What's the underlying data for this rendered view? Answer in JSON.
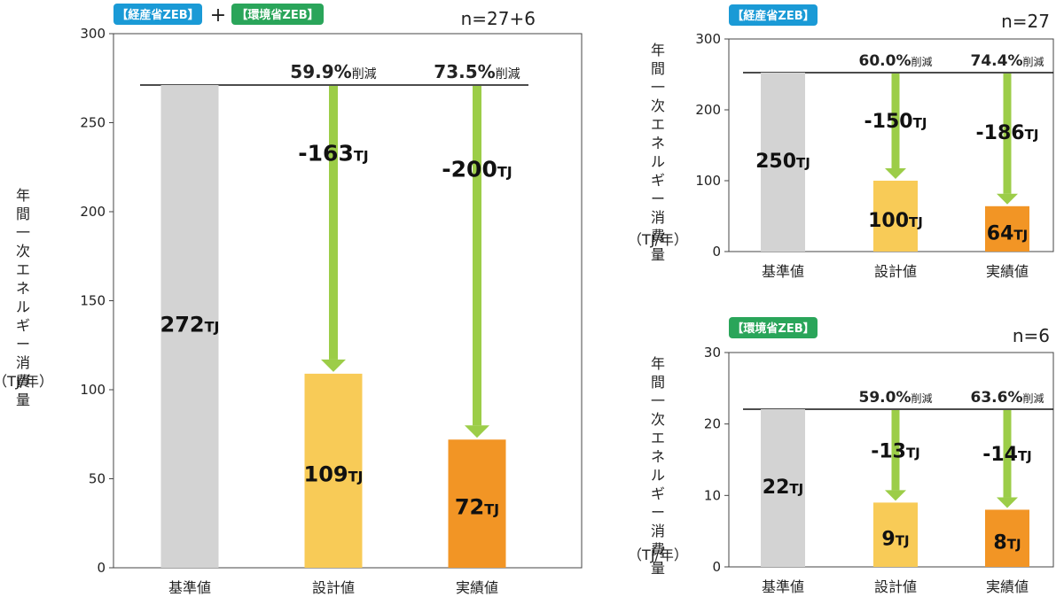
{
  "colors": {
    "baseline": "#d3d3d3",
    "design": "#f8cb57",
    "actual": "#f29525",
    "arrow": "#9ccd48",
    "badge_meti": "#1a9ad6",
    "badge_env": "#2aa55a",
    "frame": "#222222"
  },
  "badges": {
    "meti": "【経産省ZEB】",
    "env": "【環境省ZEB】",
    "plus": "+"
  },
  "y_axis_label": "年間一次エネルギー消費量",
  "y_axis_unit": "（TJ/年）",
  "reduce_suffix": "削減",
  "unit": "TJ",
  "chart_data": [
    {
      "type": "bar",
      "badges": [
        "meti",
        "env"
      ],
      "n_label": "n=27+6",
      "categories": [
        "基準値",
        "設計値",
        "実績値"
      ],
      "values": [
        272,
        109,
        72
      ],
      "value_labels": [
        "272",
        "109",
        "72"
      ],
      "reductions": [
        null,
        "-163",
        "-200"
      ],
      "reduction_pcts": [
        null,
        "59.9%",
        "73.5%"
      ],
      "ylim": [
        0,
        300
      ],
      "yticks": [
        0,
        50,
        100,
        150,
        200,
        250,
        300
      ]
    },
    {
      "type": "bar",
      "badges": [
        "meti"
      ],
      "n_label": "n=27",
      "categories": [
        "基準値",
        "設計値",
        "実績値"
      ],
      "values": [
        250,
        100,
        64
      ],
      "value_labels": [
        "250",
        "100",
        "64"
      ],
      "reductions": [
        null,
        "-150",
        "-186"
      ],
      "reduction_pcts": [
        null,
        "60.0%",
        "74.4%"
      ],
      "ylim": [
        0,
        300
      ],
      "yticks": [
        0,
        100,
        200,
        300
      ]
    },
    {
      "type": "bar",
      "badges": [
        "env"
      ],
      "n_label": "n=6",
      "categories": [
        "基準値",
        "設計値",
        "実績値"
      ],
      "values": [
        22,
        9,
        8
      ],
      "value_labels": [
        "22",
        "9",
        "8"
      ],
      "reductions": [
        null,
        "-13",
        "-14"
      ],
      "reduction_pcts": [
        null,
        "59.0%",
        "63.6%"
      ],
      "ylim": [
        0,
        30
      ],
      "yticks": [
        0,
        10,
        20,
        30
      ]
    }
  ]
}
